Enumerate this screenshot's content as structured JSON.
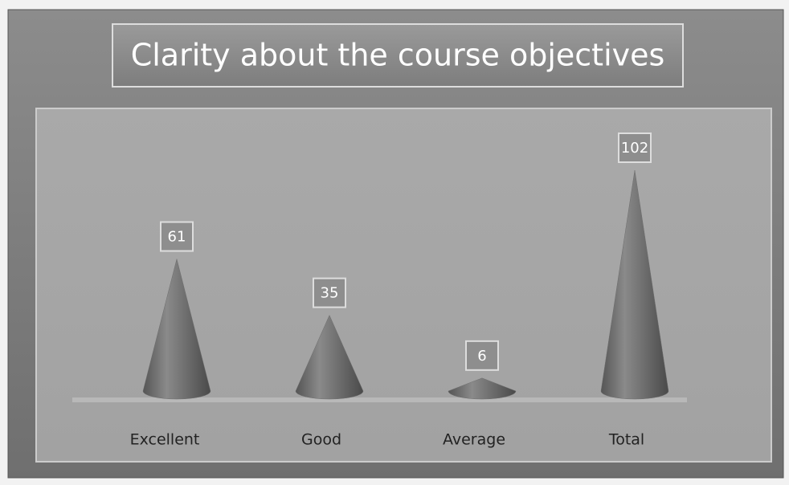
{
  "chart_data": {
    "type": "cone",
    "title": "Clarity about the course objectives",
    "categories": [
      "Excellent",
      "Good",
      "Average",
      "Total"
    ],
    "values": [
      61,
      35,
      6,
      102
    ],
    "color": "#6e6e6e"
  }
}
